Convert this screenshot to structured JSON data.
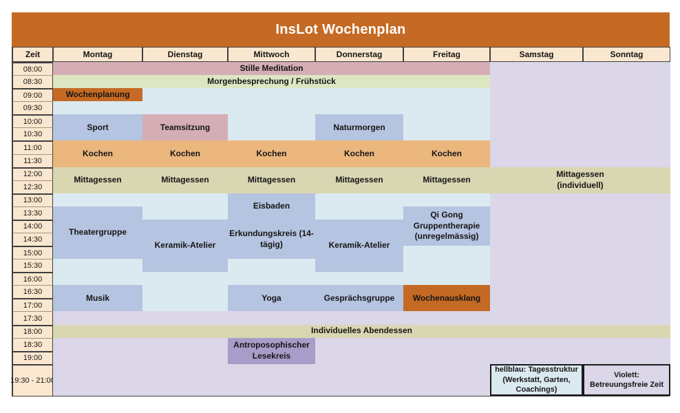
{
  "title": "InsLot Wochenplan",
  "columns": {
    "time_header": "Zeit",
    "days": [
      "Montag",
      "Dienstag",
      "Mittwoch",
      "Donnerstag",
      "Freitag",
      "Samstag",
      "Sonntag"
    ]
  },
  "times": [
    "08:00",
    "08:30",
    "09:00",
    "09:30",
    "10:00",
    "10:30",
    "11:00",
    "11:30",
    "12:00",
    "12:30",
    "13:00",
    "13:30",
    "14:00",
    "14:30",
    "15:00",
    "15:30",
    "16:00",
    "16:30",
    "17:00",
    "17:30",
    "18:00",
    "18:30",
    "19:00",
    "19:30 - 21:00"
  ],
  "palette": {
    "orange": "#C56A24",
    "peach": "#FAE7CF",
    "pink": "#D5AEB5",
    "green": "#DDE6C3",
    "lightblue": "#DBE9F1",
    "medblue": "#B5C4E0",
    "tan": "#ECB77D",
    "olive": "#D9D6B2",
    "lavender": "#DBD7E8",
    "purple": "#A89DC8",
    "title_text": "#FFFFFF"
  },
  "regions": [
    {
      "name": "weekday-daytime-structure",
      "day_start": "Montag",
      "day_end": "Freitag",
      "start": "09:00",
      "end": "17:30",
      "color": "lightblue"
    },
    {
      "name": "weekday-early-evening-free",
      "day_start": "Montag",
      "day_end": "Freitag",
      "start": "17:30",
      "end": "18:00",
      "color": "lavender"
    },
    {
      "name": "weekend-free-time",
      "day_start": "Samstag",
      "day_end": "Sonntag",
      "start": "08:00",
      "end": "18:00",
      "color": "lavender"
    },
    {
      "name": "late-evening-free",
      "day_start": "Montag",
      "day_end": "Sonntag",
      "start": "18:30",
      "end": null,
      "color": "lavender"
    }
  ],
  "events": [
    {
      "label": "Stille Meditation",
      "day_start": "Montag",
      "day_end": "Freitag",
      "start": "08:00",
      "end": "08:30",
      "color": "pink"
    },
    {
      "label": "Morgenbesprechung / Frühstück",
      "day_start": "Montag",
      "day_end": "Freitag",
      "start": "08:30",
      "end": "09:00",
      "color": "green"
    },
    {
      "label": "Wochenplanung",
      "day_start": "Montag",
      "day_end": "Montag",
      "start": "09:00",
      "end": "09:30",
      "color": "orange"
    },
    {
      "label": "Sport",
      "day_start": "Montag",
      "day_end": "Montag",
      "start": "10:00",
      "end": "11:00",
      "color": "medblue"
    },
    {
      "label": "Teamsitzung",
      "day_start": "Dienstag",
      "day_end": "Dienstag",
      "start": "10:00",
      "end": "11:00",
      "color": "pink"
    },
    {
      "label": "Naturmorgen",
      "day_start": "Donnerstag",
      "day_end": "Donnerstag",
      "start": "10:00",
      "end": "11:00",
      "color": "medblue"
    },
    {
      "label": "Kochen",
      "day_start": "Montag",
      "day_end": "Montag",
      "start": "11:00",
      "end": "12:00",
      "color": "tan"
    },
    {
      "label": "Kochen",
      "day_start": "Dienstag",
      "day_end": "Dienstag",
      "start": "11:00",
      "end": "12:00",
      "color": "tan"
    },
    {
      "label": "Kochen",
      "day_start": "Mittwoch",
      "day_end": "Mittwoch",
      "start": "11:00",
      "end": "12:00",
      "color": "tan"
    },
    {
      "label": "Kochen",
      "day_start": "Donnerstag",
      "day_end": "Donnerstag",
      "start": "11:00",
      "end": "12:00",
      "color": "tan"
    },
    {
      "label": "Kochen",
      "day_start": "Freitag",
      "day_end": "Freitag",
      "start": "11:00",
      "end": "12:00",
      "color": "tan"
    },
    {
      "label": "Mittagessen",
      "day_start": "Montag",
      "day_end": "Montag",
      "start": "12:00",
      "end": "13:00",
      "color": "olive"
    },
    {
      "label": "Mittagessen",
      "day_start": "Dienstag",
      "day_end": "Dienstag",
      "start": "12:00",
      "end": "13:00",
      "color": "olive"
    },
    {
      "label": "Mittagessen",
      "day_start": "Mittwoch",
      "day_end": "Mittwoch",
      "start": "12:00",
      "end": "13:00",
      "color": "olive"
    },
    {
      "label": "Mittagessen",
      "day_start": "Donnerstag",
      "day_end": "Donnerstag",
      "start": "12:00",
      "end": "13:00",
      "color": "olive"
    },
    {
      "label": "Mittagessen",
      "day_start": "Freitag",
      "day_end": "Freitag",
      "start": "12:00",
      "end": "13:00",
      "color": "olive"
    },
    {
      "label": "Mittagessen\n(individuell)",
      "day_start": "Samstag",
      "day_end": "Sonntag",
      "start": "12:00",
      "end": "13:00",
      "color": "olive"
    },
    {
      "label": "Eisbaden",
      "day_start": "Mittwoch",
      "day_end": "Mittwoch",
      "start": "13:00",
      "end": "14:00",
      "color": "medblue"
    },
    {
      "label": "Theatergruppe",
      "day_start": "Montag",
      "day_end": "Montag",
      "start": "13:30",
      "end": "15:30",
      "color": "medblue"
    },
    {
      "label": "Qi Gong\nGruppentherapie\n(unregelmässig)",
      "day_start": "Freitag",
      "day_end": "Freitag",
      "start": "13:30",
      "end": "15:00",
      "color": "medblue"
    },
    {
      "label": "Keramik-Atelier",
      "day_start": "Dienstag",
      "day_end": "Dienstag",
      "start": "14:00",
      "end": "16:00",
      "color": "medblue"
    },
    {
      "label": "Erkundungskreis (14-tägig)",
      "day_start": "Mittwoch",
      "day_end": "Mittwoch",
      "start": "14:00",
      "end": "15:30",
      "color": "medblue"
    },
    {
      "label": "Keramik-Atelier",
      "day_start": "Donnerstag",
      "day_end": "Donnerstag",
      "start": "14:00",
      "end": "16:00",
      "color": "medblue"
    },
    {
      "label": "Musik",
      "day_start": "Montag",
      "day_end": "Montag",
      "start": "16:30",
      "end": "17:30",
      "color": "medblue"
    },
    {
      "label": "Yoga",
      "day_start": "Mittwoch",
      "day_end": "Mittwoch",
      "start": "16:30",
      "end": "17:30",
      "color": "medblue"
    },
    {
      "label": "Gesprächsgruppe",
      "day_start": "Donnerstag",
      "day_end": "Donnerstag",
      "start": "16:30",
      "end": "17:30",
      "color": "medblue"
    },
    {
      "label": "Wochenausklang",
      "day_start": "Freitag",
      "day_end": "Freitag",
      "start": "16:30",
      "end": "17:30",
      "color": "orange"
    },
    {
      "label": "Individuelles Abendessen",
      "day_start": "Montag",
      "day_end": "Sonntag",
      "start": "18:00",
      "end": "18:30",
      "color": "olive"
    },
    {
      "label": "Antroposophischer Lesekreis",
      "day_start": "Mittwoch",
      "day_end": "Mittwoch",
      "start": "18:30",
      "end": "19:30 - 21:00",
      "color": "purple"
    }
  ],
  "legend": {
    "items": [
      {
        "label": "hellblau: Tagesstruktur (Werkstatt, Garten, Coachings)",
        "color": "lightblue",
        "column": "Samstag"
      },
      {
        "label": "Violett: Betreuungsfreie Zeit",
        "color": "lavender",
        "column": "Sonntag"
      }
    ]
  }
}
